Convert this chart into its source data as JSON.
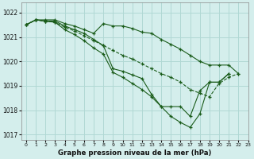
{
  "title": "Graphe pression niveau de la mer (hPa)",
  "bg_color": "#d4eeec",
  "grid_color": "#b0d8d4",
  "line_color": "#1a5c1a",
  "xlim": [
    -0.5,
    23
  ],
  "ylim": [
    1016.8,
    1022.4
  ],
  "yticks": [
    1017,
    1018,
    1019,
    1020,
    1021,
    1022
  ],
  "xticks": [
    0,
    1,
    2,
    3,
    4,
    5,
    6,
    7,
    8,
    9,
    10,
    11,
    12,
    13,
    14,
    15,
    16,
    17,
    18,
    19,
    20,
    21,
    22,
    23
  ],
  "series": [
    {
      "x": [
        0,
        1,
        2,
        3,
        4,
        5,
        6,
        7,
        8,
        9,
        10,
        11,
        12,
        13,
        14,
        15,
        16,
        17,
        18,
        19,
        20,
        21,
        22
      ],
      "y": [
        1021.5,
        1021.7,
        1021.7,
        1021.7,
        1021.55,
        1021.45,
        1021.3,
        1021.15,
        1021.55,
        1021.45,
        1021.45,
        1021.35,
        1021.2,
        1021.15,
        1020.9,
        1020.7,
        1020.5,
        1020.25,
        1020.0,
        1019.85,
        1019.85,
        1019.85,
        1019.5
      ],
      "dashed": false
    },
    {
      "x": [
        0,
        1,
        2,
        3,
        4,
        5,
        6,
        7,
        8,
        9,
        10,
        11,
        12,
        13,
        14,
        15,
        16,
        17,
        18,
        19,
        20,
        21,
        22
      ],
      "y": [
        1021.5,
        1021.7,
        1021.65,
        1021.65,
        1021.45,
        1021.3,
        1021.15,
        1020.9,
        1020.65,
        1019.7,
        1019.6,
        1019.45,
        1019.3,
        1018.65,
        1018.15,
        1018.15,
        1018.15,
        1017.75,
        1018.8,
        1019.15,
        1019.15,
        1019.5,
        null
      ],
      "dashed": false
    },
    {
      "x": [
        0,
        1,
        2,
        3,
        4,
        5,
        6,
        7,
        8,
        9,
        10,
        11,
        12,
        13,
        14,
        15,
        16,
        17,
        18,
        19,
        20,
        21,
        22
      ],
      "y": [
        1021.5,
        1021.7,
        1021.65,
        1021.6,
        1021.3,
        1021.1,
        1020.85,
        1020.55,
        1020.3,
        1019.55,
        1019.35,
        1019.1,
        1018.85,
        1018.55,
        1018.15,
        1017.75,
        1017.5,
        1017.3,
        1017.85,
        1019.15,
        1019.15,
        1019.5,
        null
      ],
      "dashed": false
    },
    {
      "x": [
        0,
        1,
        2,
        3,
        4,
        5,
        6,
        7,
        8,
        9,
        10,
        11,
        12,
        13,
        14,
        15,
        16,
        17,
        18,
        19,
        20,
        21,
        22,
        23
      ],
      "y": [
        1021.5,
        1021.7,
        1021.65,
        1021.6,
        1021.4,
        1021.25,
        1021.05,
        1020.85,
        1020.65,
        1020.45,
        1020.25,
        1020.1,
        1019.9,
        1019.7,
        1019.5,
        1019.35,
        1019.15,
        1018.85,
        1018.7,
        1018.55,
        1019.1,
        1019.35,
        1019.5,
        null
      ],
      "dashed": true
    }
  ]
}
